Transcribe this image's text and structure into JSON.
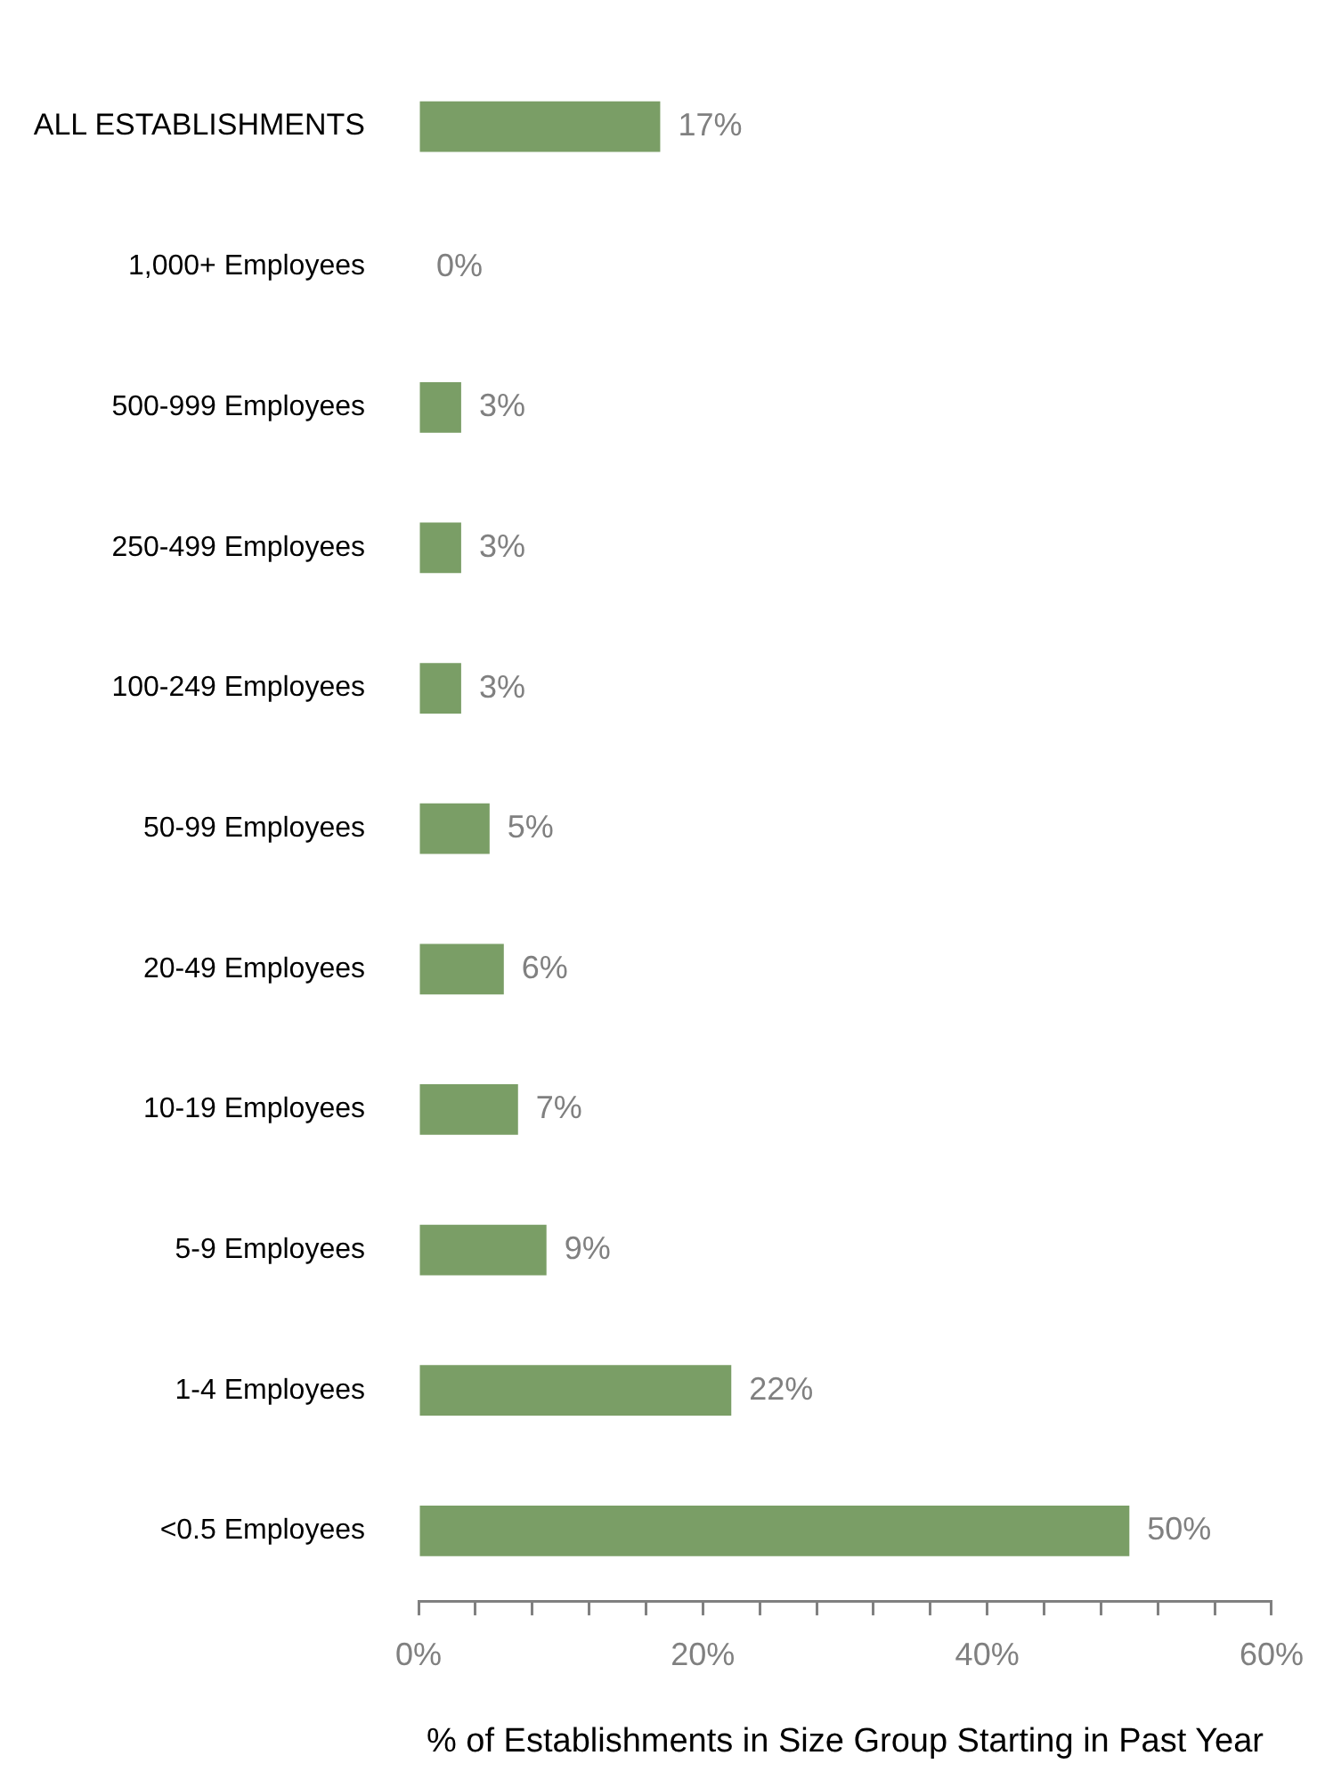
{
  "chart_data": {
    "type": "bar",
    "orientation": "horizontal",
    "xlabel": "% of Establishments in Size Group Starting in Past Year",
    "categories": [
      "ALL ESTABLISHMENTS",
      "1,000+ Employees",
      "500-999 Employees",
      "250-499 Employees",
      "100-249 Employees",
      "50-99 Employees",
      "20-49 Employees",
      "10-19 Employees",
      "5-9 Employees",
      "1-4 Employees",
      "<0.5 Employees"
    ],
    "values": [
      17,
      0,
      3,
      3,
      3,
      5,
      6,
      7,
      9,
      22,
      50
    ],
    "value_labels": [
      "17%",
      "0%",
      "3%",
      "3%",
      "3%",
      "5%",
      "6%",
      "7%",
      "9%",
      "22%",
      "50%"
    ],
    "color": "#7a9e66",
    "xlim": [
      0,
      60
    ],
    "xticks": [
      {
        "value": 0,
        "label": "0%"
      },
      {
        "value": 4,
        "label": null
      },
      {
        "value": 8,
        "label": null
      },
      {
        "value": 12,
        "label": null
      },
      {
        "value": 16,
        "label": null
      },
      {
        "value": 20,
        "label": "20%"
      },
      {
        "value": 24,
        "label": null
      },
      {
        "value": 28,
        "label": null
      },
      {
        "value": 32,
        "label": null
      },
      {
        "value": 36,
        "label": null
      },
      {
        "value": 40,
        "label": "40%"
      },
      {
        "value": 44,
        "label": null
      },
      {
        "value": 48,
        "label": null
      },
      {
        "value": 52,
        "label": null
      },
      {
        "value": 56,
        "label": null
      },
      {
        "value": 60,
        "label": "60%"
      }
    ],
    "grid": false,
    "legend": false
  }
}
